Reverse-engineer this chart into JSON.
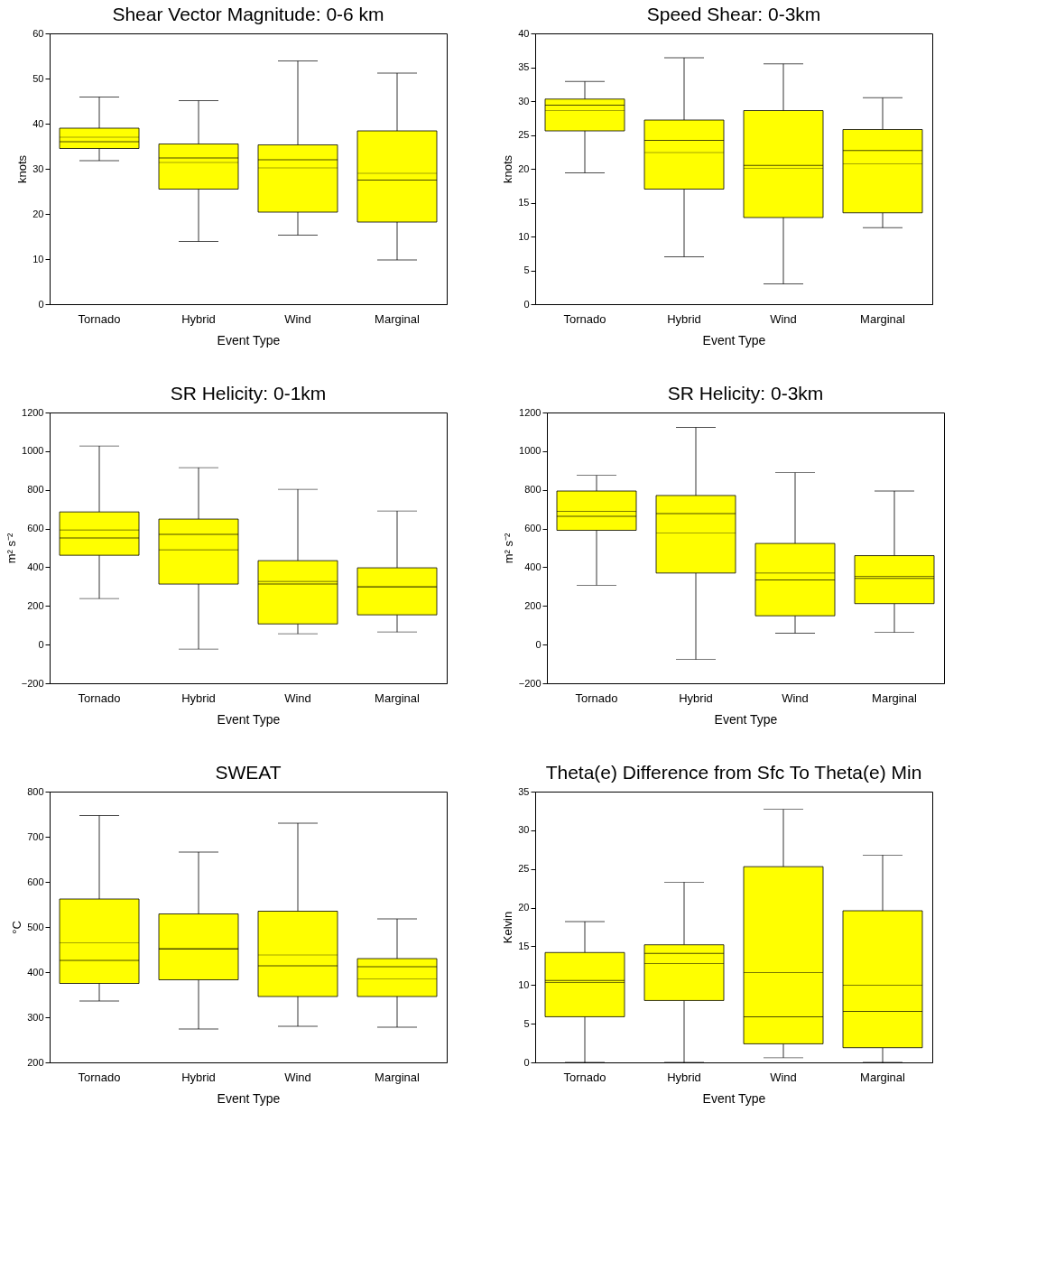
{
  "chart_data": [
    {
      "type": "box",
      "title": "Shear Vector Magnitude: 0-6 km",
      "xlabel": "Event Type",
      "ylabel": "knots",
      "categories": [
        "Tornado",
        "Hybrid",
        "Wind",
        "Marginal"
      ],
      "color": "#ffff00",
      "ylim": [
        0,
        60
      ],
      "yticks": [
        0,
        10,
        20,
        30,
        40,
        50,
        60
      ],
      "grid": false,
      "boxes": [
        {
          "low": 31.8,
          "q1": 34.5,
          "median": 36.0,
          "q3": 39.0,
          "high": 45.9,
          "mean": 37.0
        },
        {
          "low": 13.9,
          "q1": 25.5,
          "median": 32.4,
          "q3": 35.5,
          "high": 45.1,
          "mean": 31.4
        },
        {
          "low": 15.3,
          "q1": 20.4,
          "median": 32.0,
          "q3": 35.3,
          "high": 53.9,
          "mean": 30.2
        },
        {
          "low": 9.8,
          "q1": 18.2,
          "median": 27.5,
          "q3": 38.4,
          "high": 51.2,
          "mean": 29.0
        }
      ]
    },
    {
      "type": "box",
      "title": "Speed Shear: 0-3km",
      "xlabel": "Event Type",
      "ylabel": "knots",
      "categories": [
        "Tornado",
        "Hybrid",
        "Wind",
        "Marginal"
      ],
      "color": "#ffff00",
      "ylim": [
        0,
        40
      ],
      "yticks": [
        0,
        5,
        10,
        15,
        20,
        25,
        30,
        35,
        40
      ],
      "grid": false,
      "boxes": [
        {
          "low": 19.4,
          "q1": 25.6,
          "median": 29.4,
          "q3": 30.3,
          "high": 32.9,
          "mean": 28.6
        },
        {
          "low": 7.0,
          "q1": 17.0,
          "median": 24.2,
          "q3": 27.2,
          "high": 36.4,
          "mean": 22.4
        },
        {
          "low": 3.0,
          "q1": 12.8,
          "median": 20.5,
          "q3": 28.6,
          "high": 35.5,
          "mean": 20.1
        },
        {
          "low": 11.3,
          "q1": 13.5,
          "median": 22.7,
          "q3": 25.8,
          "high": 30.5,
          "mean": 20.7
        }
      ]
    },
    {
      "type": "box",
      "title": "SR Helicity: 0-1km",
      "xlabel": "Event Type",
      "ylabel": "m² s⁻²",
      "categories": [
        "Tornado",
        "Hybrid",
        "Wind",
        "Marginal"
      ],
      "color": "#ffff00",
      "ylim": [
        -200,
        1200
      ],
      "yticks": [
        -200,
        0,
        200,
        400,
        600,
        800,
        1000,
        1200
      ],
      "grid": false,
      "boxes": [
        {
          "low": 238,
          "q1": 462,
          "median": 551,
          "q3": 686,
          "high": 1027,
          "mean": 593
        },
        {
          "low": -23,
          "q1": 313,
          "median": 570,
          "q3": 649,
          "high": 915,
          "mean": 490
        },
        {
          "low": 56,
          "q1": 107,
          "median": 313,
          "q3": 434,
          "high": 803,
          "mean": 327
        },
        {
          "low": 65,
          "q1": 154,
          "median": 299,
          "q3": 397,
          "high": 691,
          "mean": 297
        }
      ]
    },
    {
      "type": "box",
      "title": "SR Helicity: 0-3km",
      "xlabel": "Event Type",
      "ylabel": "m² s⁻²",
      "categories": [
        "Tornado",
        "Hybrid",
        "Wind",
        "Marginal"
      ],
      "color": "#ffff00",
      "ylim": [
        -200,
        1200
      ],
      "yticks": [
        -200,
        0,
        200,
        400,
        600,
        800,
        1000,
        1200
      ],
      "grid": false,
      "boxes": [
        {
          "low": 307,
          "q1": 591,
          "median": 663,
          "q3": 794,
          "high": 875,
          "mean": 690
        },
        {
          "low": -77,
          "q1": 370,
          "median": 677,
          "q3": 771,
          "high": 1123,
          "mean": 577
        },
        {
          "low": 59,
          "q1": 149,
          "median": 334,
          "q3": 523,
          "high": 889,
          "mean": 370
        },
        {
          "low": 63,
          "q1": 212,
          "median": 343,
          "q3": 460,
          "high": 794,
          "mean": 352
        }
      ]
    },
    {
      "type": "box",
      "title": "SWEAT",
      "xlabel": "Event Type",
      "ylabel": "°C",
      "categories": [
        "Tornado",
        "Hybrid",
        "Wind",
        "Marginal"
      ],
      "color": "#ffff00",
      "ylim": [
        200,
        800
      ],
      "yticks": [
        200,
        300,
        400,
        500,
        600,
        700,
        800
      ],
      "grid": false,
      "boxes": [
        {
          "low": 336,
          "q1": 375,
          "median": 426,
          "q3": 562,
          "high": 747,
          "mean": 465
        },
        {
          "low": 274,
          "q1": 383,
          "median": 451,
          "q3": 529,
          "high": 666,
          "mean": 453
        },
        {
          "low": 280,
          "q1": 346,
          "median": 414,
          "q3": 535,
          "high": 730,
          "mean": 438
        },
        {
          "low": 278,
          "q1": 346,
          "median": 412,
          "q3": 430,
          "high": 518,
          "mean": 385
        }
      ]
    },
    {
      "type": "box",
      "title": "Theta(e) Difference from Sfc To Theta(e) Min",
      "xlabel": "Event Type",
      "ylabel": "Kelvin",
      "categories": [
        "Tornado",
        "Hybrid",
        "Wind",
        "Marginal"
      ],
      "color": "#ffff00",
      "ylim": [
        0,
        35
      ],
      "yticks": [
        0,
        5,
        10,
        15,
        20,
        25,
        30,
        35
      ],
      "grid": false,
      "boxes": [
        {
          "low": 0,
          "q1": 5.9,
          "median": 10.6,
          "q3": 14.2,
          "high": 18.2,
          "mean": 10.3
        },
        {
          "low": 0,
          "q1": 8.0,
          "median": 14.1,
          "q3": 15.2,
          "high": 23.3,
          "mean": 12.8
        },
        {
          "low": 0.6,
          "q1": 2.4,
          "median": 5.9,
          "q3": 25.3,
          "high": 32.7,
          "mean": 11.6
        },
        {
          "low": 0,
          "q1": 1.9,
          "median": 6.6,
          "q3": 19.6,
          "high": 26.8,
          "mean": 10.0
        }
      ]
    }
  ]
}
